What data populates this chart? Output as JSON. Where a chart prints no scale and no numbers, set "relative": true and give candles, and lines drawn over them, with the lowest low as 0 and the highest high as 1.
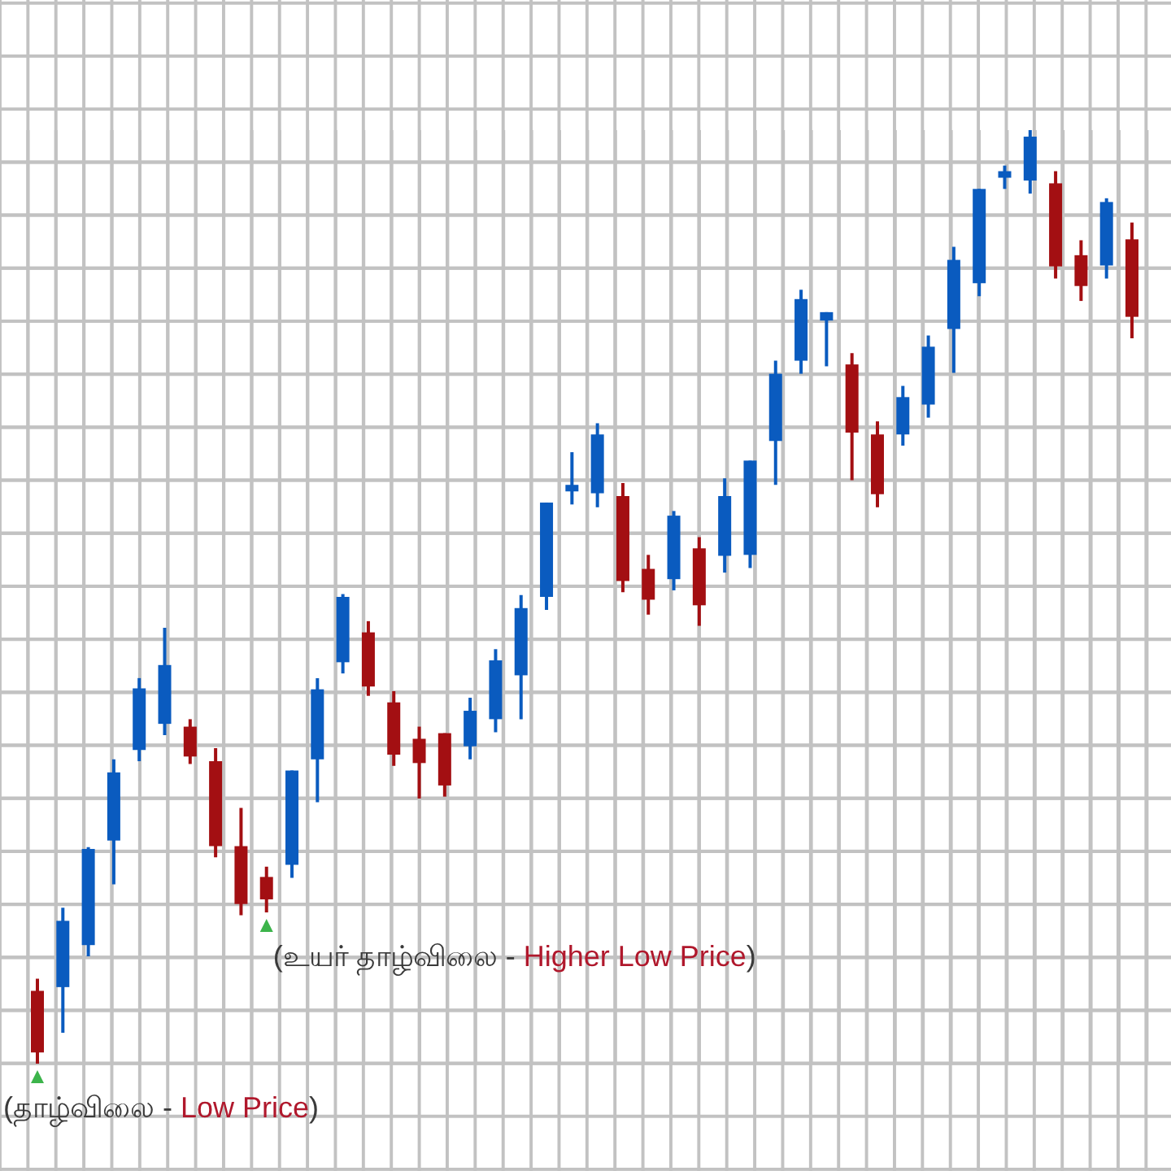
{
  "chart_data": {
    "type": "candlestick",
    "relative": true,
    "grid": true,
    "categories": [
      null,
      null,
      null,
      null,
      null,
      null,
      null,
      null,
      null,
      null,
      null,
      null,
      null,
      null,
      null,
      null,
      null,
      null,
      null,
      null,
      null,
      null,
      null,
      null,
      null,
      null,
      null,
      null,
      null,
      null,
      null,
      null,
      null,
      null,
      null,
      null,
      null,
      null,
      null,
      null,
      null,
      null,
      null,
      null
    ],
    "ohlc": [
      [
        0.078,
        0.091,
        0,
        0.012
      ],
      [
        0.082,
        0.167,
        0.033,
        0.153
      ],
      [
        0.127,
        0.232,
        0.115,
        0.23
      ],
      [
        0.239,
        0.326,
        0.192,
        0.312
      ],
      [
        0.336,
        0.413,
        0.324,
        0.402
      ],
      [
        0.364,
        0.467,
        0.352,
        0.427
      ],
      [
        0.361,
        0.369,
        0.321,
        0.329
      ],
      [
        0.324,
        0.338,
        0.221,
        0.233
      ],
      [
        0.233,
        0.274,
        0.159,
        0.171
      ],
      [
        0.2,
        0.211,
        0.162,
        0.176
      ],
      [
        0.213,
        0.314,
        0.199,
        0.314
      ],
      [
        0.326,
        0.413,
        0.28,
        0.401
      ],
      [
        0.43,
        0.503,
        0.418,
        0.5
      ],
      [
        0.462,
        0.474,
        0.394,
        0.404
      ],
      [
        0.387,
        0.399,
        0.319,
        0.331
      ],
      [
        0.348,
        0.361,
        0.284,
        0.322
      ],
      [
        0.354,
        0.354,
        0.286,
        0.298
      ],
      [
        0.34,
        0.392,
        0.326,
        0.378
      ],
      [
        0.369,
        0.444,
        0.355,
        0.432
      ],
      [
        0.416,
        0.502,
        0.369,
        0.488
      ],
      [
        0.5,
        0.601,
        0.486,
        0.601
      ],
      [
        0.613,
        0.655,
        0.599,
        0.62
      ],
      [
        0.611,
        0.686,
        0.596,
        0.674
      ],
      [
        0.608,
        0.622,
        0.505,
        0.517
      ],
      [
        0.53,
        0.545,
        0.481,
        0.497
      ],
      [
        0.519,
        0.592,
        0.507,
        0.587
      ],
      [
        0.552,
        0.564,
        0.469,
        0.491
      ],
      [
        0.544,
        0.627,
        0.526,
        0.608
      ],
      [
        0.545,
        0.646,
        0.531,
        0.646
      ],
      [
        0.667,
        0.753,
        0.62,
        0.739
      ],
      [
        0.753,
        0.829,
        0.739,
        0.819
      ],
      [
        0.796,
        0.805,
        0.747,
        0.805
      ],
      [
        0.749,
        0.761,
        0.625,
        0.676
      ],
      [
        0.674,
        0.688,
        0.596,
        0.61
      ],
      [
        0.674,
        0.726,
        0.662,
        0.714
      ],
      [
        0.706,
        0.78,
        0.692,
        0.768
      ],
      [
        0.787,
        0.875,
        0.74,
        0.861
      ],
      [
        0.836,
        0.937,
        0.822,
        0.937
      ],
      [
        0.949,
        0.962,
        0.937,
        0.956
      ],
      [
        0.946,
        1,
        0.932,
        0.993
      ],
      [
        0.943,
        0.956,
        0.841,
        0.854
      ],
      [
        0.866,
        0.882,
        0.817,
        0.833
      ],
      [
        0.855,
        0.927,
        0.841,
        0.923
      ],
      [
        0.883,
        0.901,
        0.777,
        0.8
      ]
    ],
    "colors": [
      "#a30f12",
      "#0a5bbf",
      "#0a5bbf",
      "#0a5bbf",
      "#0a5bbf",
      "#0a5bbf",
      "#a30f12",
      "#a30f12",
      "#a30f12",
      "#a30f12",
      "#0a5bbf",
      "#0a5bbf",
      "#0a5bbf",
      "#a30f12",
      "#a30f12",
      "#a30f12",
      "#a30f12",
      "#0a5bbf",
      "#0a5bbf",
      "#0a5bbf",
      "#0a5bbf",
      "#0a5bbf",
      "#0a5bbf",
      "#a30f12",
      "#a30f12",
      "#0a5bbf",
      "#a30f12",
      "#0a5bbf",
      "#0a5bbf",
      "#0a5bbf",
      "#0a5bbf",
      "#0a5bbf",
      "#a30f12",
      "#a30f12",
      "#0a5bbf",
      "#0a5bbf",
      "#0a5bbf",
      "#0a5bbf",
      "#0a5bbf",
      "#0a5bbf",
      "#a30f12",
      "#a30f12",
      "#0a5bbf",
      "#a30f12"
    ],
    "annotations": [
      "(தாழ்விலை - Low Price)",
      "(உயர் தாழ்விலை - Higher Low Price)"
    ]
  }
}
